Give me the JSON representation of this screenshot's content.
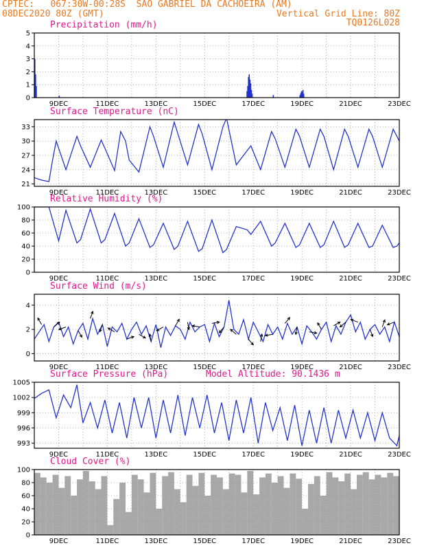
{
  "header": {
    "line1_left": "CPTEC:   067:30W-00:28S  SAO GABRIEL DA CACHOEIRA (AM)",
    "line2_left": "08DEC2020 80Z (GMT)",
    "line2_right": "Vertical Grid Line: 80Z",
    "line3_right": "TQ0126L028"
  },
  "colors": {
    "header": "#e8781e",
    "title": "#e0188c",
    "series": "#2233cc",
    "cloud": "#a8a8a8",
    "grid": "#999999"
  },
  "x_axis": {
    "labels": [
      "9DEC",
      "11DEC",
      "13DEC",
      "15DEC",
      "17DEC",
      "19DEC",
      "21DEC",
      "23DEC"
    ],
    "label_days": [
      9,
      11,
      13,
      15,
      17,
      19,
      21,
      23
    ],
    "range_days": [
      8,
      23
    ]
  },
  "chart_data": [
    {
      "type": "bar",
      "title": "Precipitation (mm/h)",
      "ylim": [
        0,
        5
      ],
      "yticks": [
        "0",
        "1",
        "2",
        "3",
        "4",
        "5"
      ],
      "x_days": [
        8.0,
        8.03,
        8.06,
        9.0,
        16.72,
        16.75,
        16.78,
        16.81,
        16.84,
        16.87,
        16.9,
        16.93,
        17.8,
        18.9,
        18.93,
        18.96,
        18.99,
        19.02,
        19.05
      ],
      "values": [
        3.0,
        1.8,
        0.9,
        0.15,
        0.5,
        0.9,
        1.6,
        1.8,
        1.4,
        1.1,
        0.6,
        0.3,
        0.2,
        0.2,
        0.35,
        0.5,
        0.45,
        0.6,
        0.3
      ]
    },
    {
      "type": "line",
      "title": "Surface Temperature (nC)",
      "ylim": [
        20.5,
        34.5
      ],
      "yticks": [
        "21",
        "24",
        "27",
        "30",
        "33"
      ],
      "x_days": [
        8.0,
        8.3,
        8.6,
        8.75,
        8.9,
        9.3,
        9.75,
        9.9,
        10.3,
        10.75,
        10.9,
        11.3,
        11.55,
        11.75,
        11.9,
        12.3,
        12.75,
        12.9,
        13.3,
        13.75,
        13.9,
        14.3,
        14.75,
        14.9,
        15.3,
        15.75,
        15.9,
        16.3,
        16.75,
        16.9,
        17.3,
        17.75,
        17.9,
        18.3,
        18.75,
        18.9,
        19.3,
        19.75,
        19.9,
        20.3,
        20.75,
        20.9,
        21.3,
        21.75,
        21.9,
        22.3,
        22.75,
        22.9,
        23.0
      ],
      "values": [
        22.3,
        21.8,
        21.5,
        26.0,
        30.0,
        24.0,
        31.0,
        29.0,
        24.5,
        30.2,
        28.5,
        23.8,
        32.0,
        30.0,
        26.0,
        23.5,
        33.0,
        31.0,
        24.5,
        34.0,
        31.5,
        25.0,
        33.5,
        31.5,
        24.0,
        33.0,
        34.8,
        25.0,
        28.0,
        29.0,
        24.0,
        32.0,
        30.5,
        24.5,
        32.5,
        31.0,
        24.5,
        32.5,
        31.0,
        24.0,
        32.5,
        31.0,
        24.5,
        32.5,
        31.0,
        24.5,
        32.5,
        31.0,
        30.0
      ]
    },
    {
      "type": "line",
      "title": "Relative Humidity (%)",
      "ylim": [
        0,
        100
      ],
      "yticks": [
        "0",
        "20",
        "40",
        "60",
        "80",
        "100"
      ],
      "x_days": [
        8.0,
        8.3,
        8.6,
        9.0,
        9.3,
        9.75,
        9.9,
        10.3,
        10.75,
        10.9,
        11.3,
        11.75,
        11.9,
        12.3,
        12.75,
        12.9,
        13.3,
        13.75,
        13.9,
        14.3,
        14.75,
        14.9,
        15.3,
        15.75,
        15.9,
        16.3,
        16.75,
        16.9,
        17.3,
        17.75,
        17.9,
        18.3,
        18.75,
        18.9,
        19.3,
        19.75,
        19.9,
        20.3,
        20.75,
        20.9,
        21.3,
        21.75,
        21.9,
        22.3,
        22.75,
        22.9,
        23.0
      ],
      "values": [
        100,
        100,
        100,
        48,
        95,
        45,
        50,
        97,
        45,
        50,
        90,
        40,
        45,
        82,
        38,
        42,
        75,
        35,
        40,
        78,
        32,
        36,
        80,
        30,
        35,
        70,
        65,
        58,
        78,
        40,
        45,
        75,
        38,
        42,
        75,
        38,
        42,
        78,
        38,
        42,
        75,
        38,
        40,
        72,
        38,
        40,
        45
      ]
    },
    {
      "type": "line",
      "title": "Surface Wind (m/s)",
      "ylim": [
        -0.6,
        4.9
      ],
      "yticks": [
        "0",
        "2",
        "4"
      ],
      "x_days": [
        8.0,
        8.2,
        8.4,
        8.6,
        8.8,
        9.0,
        9.2,
        9.4,
        9.6,
        9.8,
        10.0,
        10.2,
        10.4,
        10.6,
        10.8,
        11.0,
        11.2,
        11.4,
        11.6,
        11.8,
        12.0,
        12.2,
        12.4,
        12.6,
        12.8,
        13.0,
        13.2,
        13.4,
        13.6,
        13.8,
        14.0,
        14.2,
        14.4,
        14.6,
        14.8,
        15.0,
        15.2,
        15.4,
        15.6,
        15.8,
        16.0,
        16.2,
        16.4,
        16.6,
        16.8,
        17.0,
        17.2,
        17.4,
        17.6,
        17.8,
        18.0,
        18.2,
        18.4,
        18.6,
        18.8,
        19.0,
        19.2,
        19.4,
        19.6,
        19.8,
        20.0,
        20.2,
        20.4,
        20.6,
        20.8,
        21.0,
        21.2,
        21.4,
        21.6,
        21.8,
        22.0,
        22.2,
        22.4,
        22.6,
        22.8,
        23.0
      ],
      "values": [
        1.2,
        1.8,
        2.4,
        1.0,
        2.2,
        2.6,
        1.4,
        2.2,
        0.8,
        1.9,
        2.5,
        1.2,
        2.9,
        1.6,
        2.4,
        0.6,
        2.2,
        1.8,
        2.5,
        1.2,
        2.0,
        2.6,
        1.6,
        2.3,
        1.0,
        2.4,
        0.5,
        2.2,
        1.5,
        2.3,
        2.0,
        1.2,
        2.6,
        1.8,
        2.2,
        2.4,
        1.0,
        2.5,
        1.4,
        2.2,
        4.4,
        2.0,
        1.6,
        2.8,
        1.2,
        2.6,
        1.8,
        1.0,
        2.4,
        1.6,
        2.2,
        1.2,
        2.5,
        1.6,
        2.2,
        0.8,
        2.3,
        1.8,
        1.2,
        2.0,
        2.6,
        1.0,
        2.3,
        1.6,
        2.6,
        3.2,
        1.8,
        2.6,
        1.2,
        2.0,
        2.4,
        1.6,
        2.2,
        1.0,
        2.6,
        1.4
      ]
    },
    {
      "type": "line",
      "title": "Surface Pressure (hPa)",
      "annotation": "Model Altitude: 90.1436 m",
      "ylim": [
        992,
        1005
      ],
      "yticks": [
        "993",
        "996",
        "999",
        "1002",
        "1005"
      ],
      "x_days": [
        8.0,
        8.3,
        8.6,
        8.9,
        9.2,
        9.5,
        9.75,
        10.0,
        10.3,
        10.6,
        10.9,
        11.2,
        11.5,
        11.8,
        12.1,
        12.4,
        12.7,
        13.0,
        13.3,
        13.6,
        13.9,
        14.2,
        14.5,
        14.8,
        15.1,
        15.4,
        15.7,
        16.0,
        16.3,
        16.6,
        16.9,
        17.2,
        17.5,
        17.8,
        18.1,
        18.4,
        18.7,
        19.0,
        19.3,
        19.6,
        19.9,
        20.2,
        20.5,
        20.8,
        21.1,
        21.4,
        21.7,
        22.0,
        22.3,
        22.6,
        22.9,
        23.0
      ],
      "values": [
        1001.8,
        1002.8,
        1003.5,
        998.0,
        1002.5,
        1000.0,
        1004.5,
        997.0,
        1001.0,
        996.0,
        1001.5,
        995.0,
        1001.0,
        994.0,
        1002.0,
        996.0,
        1002.0,
        994.0,
        1001.5,
        995.0,
        1002.5,
        994.5,
        1002.0,
        996.0,
        1002.5,
        995.0,
        1001.0,
        993.5,
        1001.5,
        995.0,
        1002.0,
        993.0,
        1001.0,
        995.5,
        1000.0,
        993.5,
        1000.5,
        992.5,
        999.5,
        993.0,
        1000.0,
        993.0,
        999.5,
        994.0,
        999.5,
        994.0,
        999.0,
        993.5,
        999.0,
        994.0,
        992.5,
        994.5
      ]
    },
    {
      "type": "bar",
      "title": "Cloud Cover (%)",
      "ylim": [
        0,
        100
      ],
      "yticks": [
        "0",
        "20",
        "40",
        "60",
        "80",
        "100"
      ],
      "x_days": [
        8.0,
        8.25,
        8.5,
        8.75,
        9.0,
        9.25,
        9.5,
        9.75,
        10.0,
        10.25,
        10.5,
        10.75,
        11.0,
        11.25,
        11.5,
        11.75,
        12.0,
        12.25,
        12.5,
        12.75,
        13.0,
        13.25,
        13.5,
        13.75,
        14.0,
        14.25,
        14.5,
        14.75,
        15.0,
        15.25,
        15.5,
        15.75,
        16.0,
        16.25,
        16.5,
        16.75,
        17.0,
        17.25,
        17.5,
        17.75,
        18.0,
        18.25,
        18.5,
        18.75,
        19.0,
        19.25,
        19.5,
        19.75,
        20.0,
        20.25,
        20.5,
        20.75,
        21.0,
        21.25,
        21.5,
        21.75,
        22.0,
        22.25,
        22.5,
        22.75
      ],
      "values": [
        95,
        88,
        80,
        92,
        72,
        90,
        60,
        85,
        98,
        82,
        70,
        90,
        15,
        55,
        80,
        35,
        92,
        85,
        65,
        95,
        40,
        90,
        96,
        70,
        50,
        92,
        75,
        95,
        60,
        92,
        88,
        70,
        94,
        92,
        65,
        98,
        62,
        88,
        94,
        80,
        90,
        72,
        94,
        86,
        40,
        78,
        90,
        60,
        96,
        88,
        82,
        94,
        70,
        92,
        96,
        85,
        92,
        88,
        95,
        90
      ]
    }
  ]
}
